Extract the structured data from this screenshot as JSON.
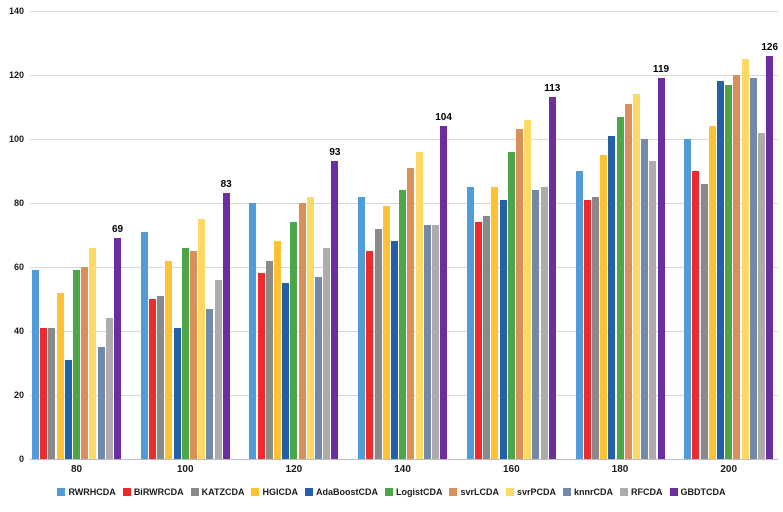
{
  "chart_data": {
    "type": "bar",
    "title": "",
    "xlabel": "",
    "ylabel": "",
    "categories": [
      "80",
      "100",
      "120",
      "140",
      "160",
      "180",
      "200"
    ],
    "series": [
      {
        "name": "RWRHCDA",
        "color": "#4F9CD9",
        "values": [
          59,
          71,
          80,
          82,
          85,
          90,
          100
        ]
      },
      {
        "name": "BiRWRCDA",
        "color": "#EE2B2C",
        "values": [
          41,
          50,
          58,
          65,
          74,
          81,
          90
        ]
      },
      {
        "name": "KATZCDA",
        "color": "#8A8A8A",
        "values": [
          41,
          51,
          62,
          72,
          76,
          82,
          86
        ]
      },
      {
        "name": "HGICDA",
        "color": "#FFC233",
        "values": [
          52,
          62,
          68,
          79,
          85,
          95,
          104
        ]
      },
      {
        "name": "AdaBoostCDA",
        "color": "#2460A7",
        "values": [
          31,
          41,
          55,
          68,
          81,
          101,
          118
        ]
      },
      {
        "name": "LogistCDA",
        "color": "#4CA648",
        "values": [
          59,
          66,
          74,
          84,
          96,
          107,
          117
        ]
      },
      {
        "name": "svrLCDA",
        "color": "#D98F5A",
        "values": [
          60,
          65,
          80,
          91,
          103,
          111,
          120
        ]
      },
      {
        "name": "svrPCDA",
        "color": "#FFD966",
        "values": [
          66,
          75,
          82,
          96,
          106,
          114,
          125
        ]
      },
      {
        "name": "knnrCDA",
        "color": "#7289AA",
        "values": [
          35,
          47,
          57,
          73,
          84,
          100,
          119
        ]
      },
      {
        "name": "RFCDA",
        "color": "#ACACAC",
        "values": [
          44,
          56,
          66,
          73,
          85,
          93,
          102
        ]
      },
      {
        "name": "GBDTCDA",
        "color": "#6C2DA0",
        "values": [
          69,
          83,
          93,
          104,
          113,
          119,
          126
        ]
      }
    ],
    "annotations": {
      "series": "GBDTCDA",
      "labels": [
        "69",
        "83",
        "93",
        "104",
        "113",
        "119",
        "126"
      ]
    },
    "y_ticks": [
      0,
      20,
      40,
      60,
      80,
      100,
      120,
      140
    ],
    "ylim": [
      0,
      140
    ],
    "grid": true,
    "legend_position": "bottom"
  }
}
